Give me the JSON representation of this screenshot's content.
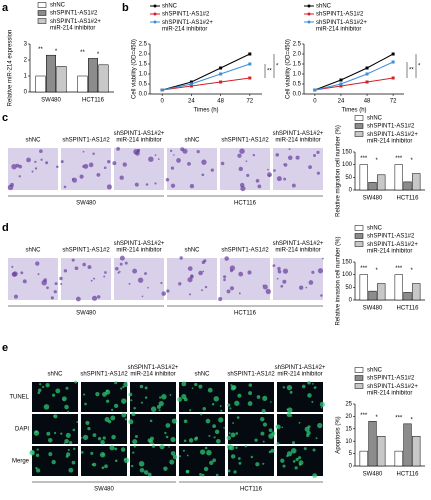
{
  "figure": {
    "labels": [
      "a",
      "b",
      "c",
      "d",
      "e"
    ]
  },
  "chart_data": [
    {
      "type": "bar",
      "ylabel": "Relative miR-214 expression",
      "categories": [
        "SW480",
        "HCT116"
      ],
      "series": [
        {
          "name": "shNC",
          "color": "#ffffff",
          "values": [
            1.0,
            1.0
          ]
        },
        {
          "name": "shSPINT1-AS1#2",
          "color": "#8c8c8c",
          "values": [
            2.3,
            2.1
          ]
        },
        {
          "name": "shSPINT1-AS1#2+ miR-214 inhibitor",
          "color": "#c8c8c8",
          "values": [
            1.6,
            1.7
          ]
        }
      ],
      "ylim": [
        0,
        3
      ],
      "yticks": [
        0,
        1,
        2,
        3
      ],
      "annotations": [
        "**",
        "*",
        "**",
        "*"
      ]
    },
    {
      "type": "line",
      "ylabel": "Cell viability (OD=450)",
      "xlabel": "Times (h)",
      "x": [
        0,
        24,
        48,
        72
      ],
      "series": [
        {
          "name": "shNC",
          "color": "#000000",
          "values": [
            0.2,
            0.6,
            1.3,
            2.0
          ]
        },
        {
          "name": "shSPINT1-AS1#2",
          "color": "#d0202a",
          "values": [
            0.2,
            0.4,
            0.6,
            0.8
          ]
        },
        {
          "name": "shSPINT1-AS1#2+ miR-214 inhibitor",
          "color": "#3a8fd9",
          "values": [
            0.2,
            0.5,
            1.0,
            1.5
          ]
        }
      ],
      "xlim": [
        -10,
        82
      ],
      "xticks": [
        0,
        24,
        48,
        72
      ],
      "ylim": [
        0,
        2.5
      ],
      "yticks": [
        {
          "value": 0,
          "label": "0.0"
        },
        0.5,
        {
          "value": 1,
          "label": "1.0"
        },
        1.5,
        {
          "value": 2,
          "label": "2.0"
        },
        2.5
      ],
      "annotations": [
        "**",
        "*"
      ]
    },
    {
      "type": "line",
      "ylabel": "Cell viability (OD=450)",
      "xlabel": "Times (h)",
      "x": [
        0,
        24,
        48,
        72
      ],
      "series": [
        {
          "name": "shNC",
          "color": "#000000",
          "values": [
            0.2,
            0.7,
            1.3,
            2.0
          ]
        },
        {
          "name": "shSPINT1-AS1#2",
          "color": "#d0202a",
          "values": [
            0.2,
            0.4,
            0.6,
            0.8
          ]
        },
        {
          "name": "shSPINT1-AS1#2+ miR-214 inhibitor",
          "color": "#3a8fd9",
          "values": [
            0.2,
            0.5,
            1.0,
            1.6
          ]
        }
      ],
      "xlim": [
        -10,
        82
      ],
      "xticks": [
        0,
        24,
        48,
        72
      ],
      "ylim": [
        0,
        2.5
      ],
      "yticks": [
        {
          "value": 0,
          "label": "0.0"
        },
        0.5,
        {
          "value": 1,
          "label": "1.0"
        },
        1.5,
        {
          "value": 2,
          "label": "2.0"
        },
        2.5
      ],
      "annotations": [
        "**",
        "*"
      ]
    },
    {
      "type": "bar",
      "ylabel": "Relative migration cell number (%)",
      "categories": [
        "SW480",
        "HCT116"
      ],
      "series": [
        {
          "name": "shNC",
          "color": "#ffffff",
          "values": [
            100,
            100
          ]
        },
        {
          "name": "shSPINT1-AS1#2",
          "color": "#8c8c8c",
          "values": [
            30,
            32
          ]
        },
        {
          "name": "shSPINT1-AS1#2+ miR-214 inhibitor",
          "color": "#c8c8c8",
          "values": [
            60,
            65
          ]
        }
      ],
      "ylim": [
        0,
        150
      ],
      "yticks": [
        0,
        50,
        100,
        150
      ],
      "annotations": [
        "***",
        "*",
        "***",
        "*"
      ]
    },
    {
      "type": "bar",
      "ylabel": "Relative invasion cell number (%)",
      "categories": [
        "SW480",
        "HCT116"
      ],
      "series": [
        {
          "name": "shNC",
          "color": "#ffffff",
          "values": [
            100,
            100
          ]
        },
        {
          "name": "shSPINT1-AS1#2",
          "color": "#8c8c8c",
          "values": [
            35,
            30
          ]
        },
        {
          "name": "shSPINT1-AS1#2+ miR-214 inhibitor",
          "color": "#c8c8c8",
          "values": [
            65,
            65
          ]
        }
      ],
      "ylim": [
        0,
        150
      ],
      "yticks": [
        0,
        50,
        100,
        150
      ],
      "annotations": [
        "***",
        "*",
        "***",
        "*"
      ]
    },
    {
      "type": "bar",
      "ylabel": "Apoptosis (%)",
      "categories": [
        "SW480",
        "HCT116"
      ],
      "series": [
        {
          "name": "shNC",
          "color": "#ffffff",
          "values": [
            6,
            6
          ]
        },
        {
          "name": "shSPINT1-AS1#2",
          "color": "#8c8c8c",
          "values": [
            18,
            17
          ]
        },
        {
          "name": "shSPINT1-AS1#2+ miR-214 inhibitor",
          "color": "#c8c8c8",
          "values": [
            12,
            12
          ]
        }
      ],
      "ylim": [
        0,
        25
      ],
      "yticks": [
        0,
        5,
        10,
        15,
        20,
        25
      ],
      "annotations": [
        "***",
        "*",
        "***",
        "*"
      ]
    }
  ],
  "images_c": {
    "columns": [
      "shNC",
      "shSPINT1-AS1#2",
      "shSPINT1-AS1#2+ miR-214 inhibitor"
    ],
    "groups": [
      "SW480",
      "HCT116"
    ]
  },
  "images_d": {
    "columns": [
      "shNC",
      "shSPINT1-AS1#2",
      "shSPINT1-AS1#2+ miR-214 inhibitor"
    ],
    "groups": [
      "SW480",
      "HCT116"
    ]
  },
  "images_e": {
    "columns": [
      "shNC",
      "shSPINT1-AS1#2",
      "shSPINT1-AS1#2+ miR-214 inhibitor"
    ],
    "rows": [
      "TUNEL",
      "DAPI",
      "Merge"
    ],
    "groups": [
      "SW480",
      "HCT116"
    ]
  }
}
